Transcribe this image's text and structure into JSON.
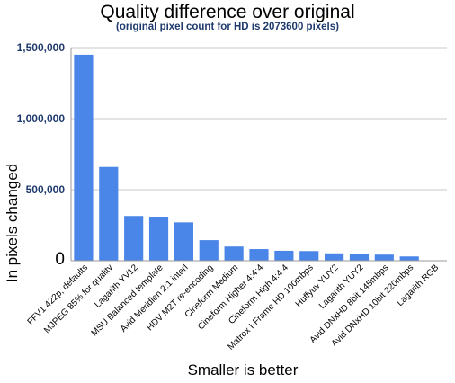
{
  "chart_data": {
    "type": "bar",
    "title": "Quality difference over original",
    "subtitle": "(original pixel count for HD is 2073600 pixels)",
    "xlabel": "Smaller is better",
    "ylabel": "In pixels changed",
    "ylim": [
      0,
      1500000
    ],
    "yticks": [
      {
        "value": 0,
        "label": "0"
      },
      {
        "value": 500000,
        "label": "500,000"
      },
      {
        "value": 1000000,
        "label": "1,000,000"
      },
      {
        "value": 1500000,
        "label": "1,500,000"
      }
    ],
    "grid": true,
    "bar_color": "#4a86e8",
    "categories": [
      "FFV1 422p, defaults",
      "MJPEG 85% for quality",
      "Lagarith YV12",
      "MSU Balanced template",
      "Avid Meridien 2:1 interl",
      "HDV M2T re-encoding",
      "Cineform Medium",
      "Cineform Higher 4:4:4",
      "Cineform High 4:4:4",
      "Matrox I-Frame HD 100mbps",
      "Huffyuv YUY2",
      "Lagarith YUY2",
      "Avid DNxHD 8bit 145mbps",
      "Avid DNxHD 10bit 220mbps",
      "Lagarith RGB"
    ],
    "values": [
      1450000,
      660000,
      315000,
      310000,
      270000,
      145000,
      100000,
      82000,
      70000,
      68000,
      52000,
      50000,
      43000,
      30000,
      0
    ]
  }
}
